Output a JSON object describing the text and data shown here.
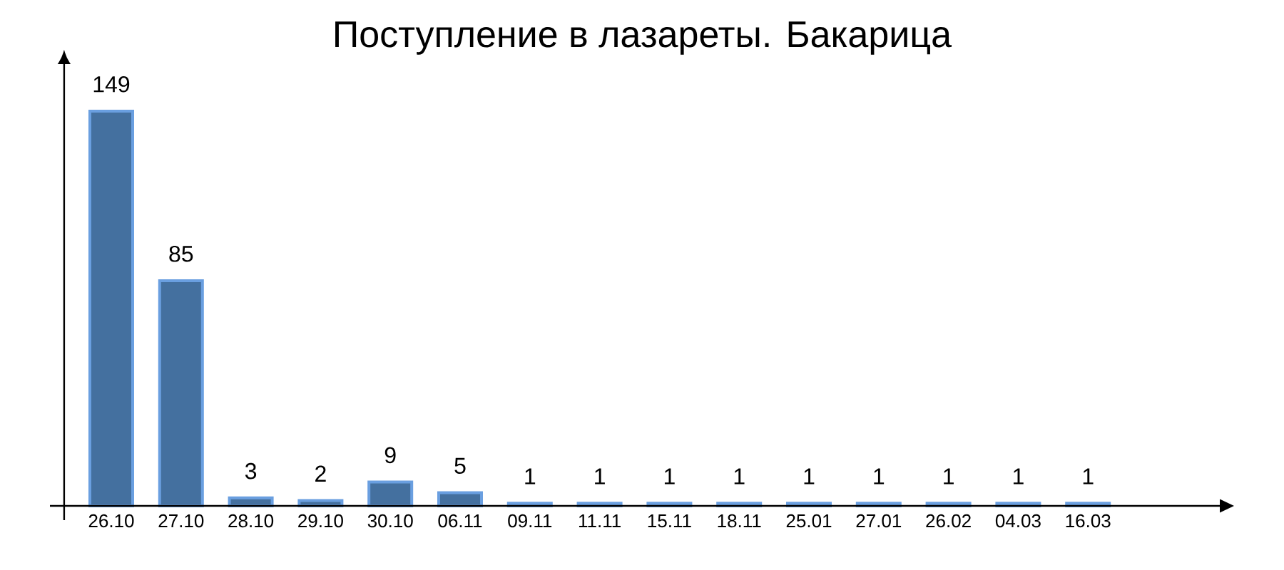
{
  "chart_data": {
    "type": "bar",
    "title": "Поступление в лазареты. Бакарица",
    "categories": [
      "26.10",
      "27.10",
      "28.10",
      "29.10",
      "30.10",
      "06.11",
      "09.11",
      "11.11",
      "15.11",
      "18.11",
      "25.01",
      "27.01",
      "26.02",
      "04.03",
      "16.03"
    ],
    "values": [
      149,
      85,
      3,
      2,
      9,
      5,
      1,
      1,
      1,
      1,
      1,
      1,
      1,
      1,
      1
    ],
    "color": "#44709f",
    "data_labels": true,
    "tick_labels": "x"
  }
}
